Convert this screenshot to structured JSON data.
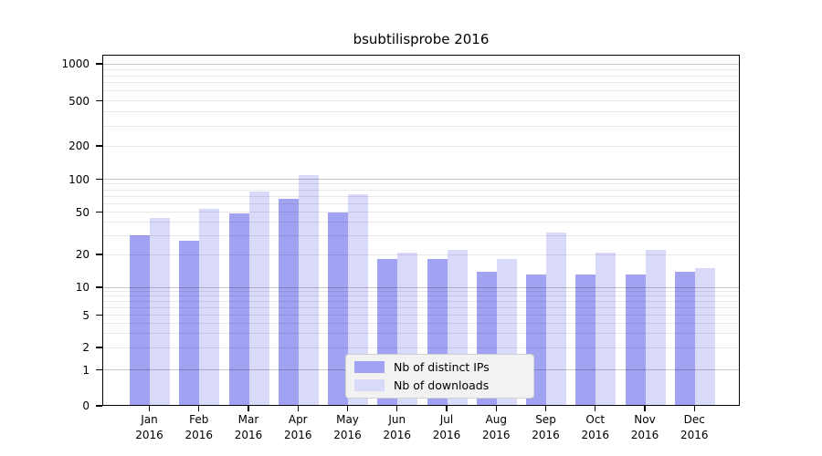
{
  "chart_data": {
    "type": "bar",
    "title": "bsubtilisprobe 2016",
    "categories": [
      "Jan",
      "Feb",
      "Mar",
      "Apr",
      "May",
      "Jun",
      "Jul",
      "Aug",
      "Sep",
      "Oct",
      "Nov",
      "Dec"
    ],
    "category_year": "2016",
    "series": [
      {
        "name": "Nb of distinct IPs",
        "color": "#a2a2f2",
        "values": [
          30,
          27,
          49,
          66,
          50,
          18,
          18,
          14,
          13,
          13,
          13,
          14
        ]
      },
      {
        "name": "Nb of downloads",
        "color": "#d9d9f9",
        "values": [
          44,
          54,
          77,
          108,
          73,
          21,
          22,
          18,
          32,
          21,
          22,
          15
        ]
      }
    ],
    "y_axis": {
      "scale": "log-like with 0 baseline",
      "ticks": [
        0,
        1,
        2,
        5,
        10,
        20,
        50,
        100,
        200,
        500,
        1000
      ],
      "range": [
        0,
        1000
      ]
    },
    "x_axis": {
      "label_format": "month over year"
    },
    "legend": {
      "position": "bottom-center",
      "entries": [
        "Nb of distinct IPs",
        "Nb of downloads"
      ]
    },
    "grid": "minor and major horizontal gridlines",
    "background": "#ffffff"
  }
}
